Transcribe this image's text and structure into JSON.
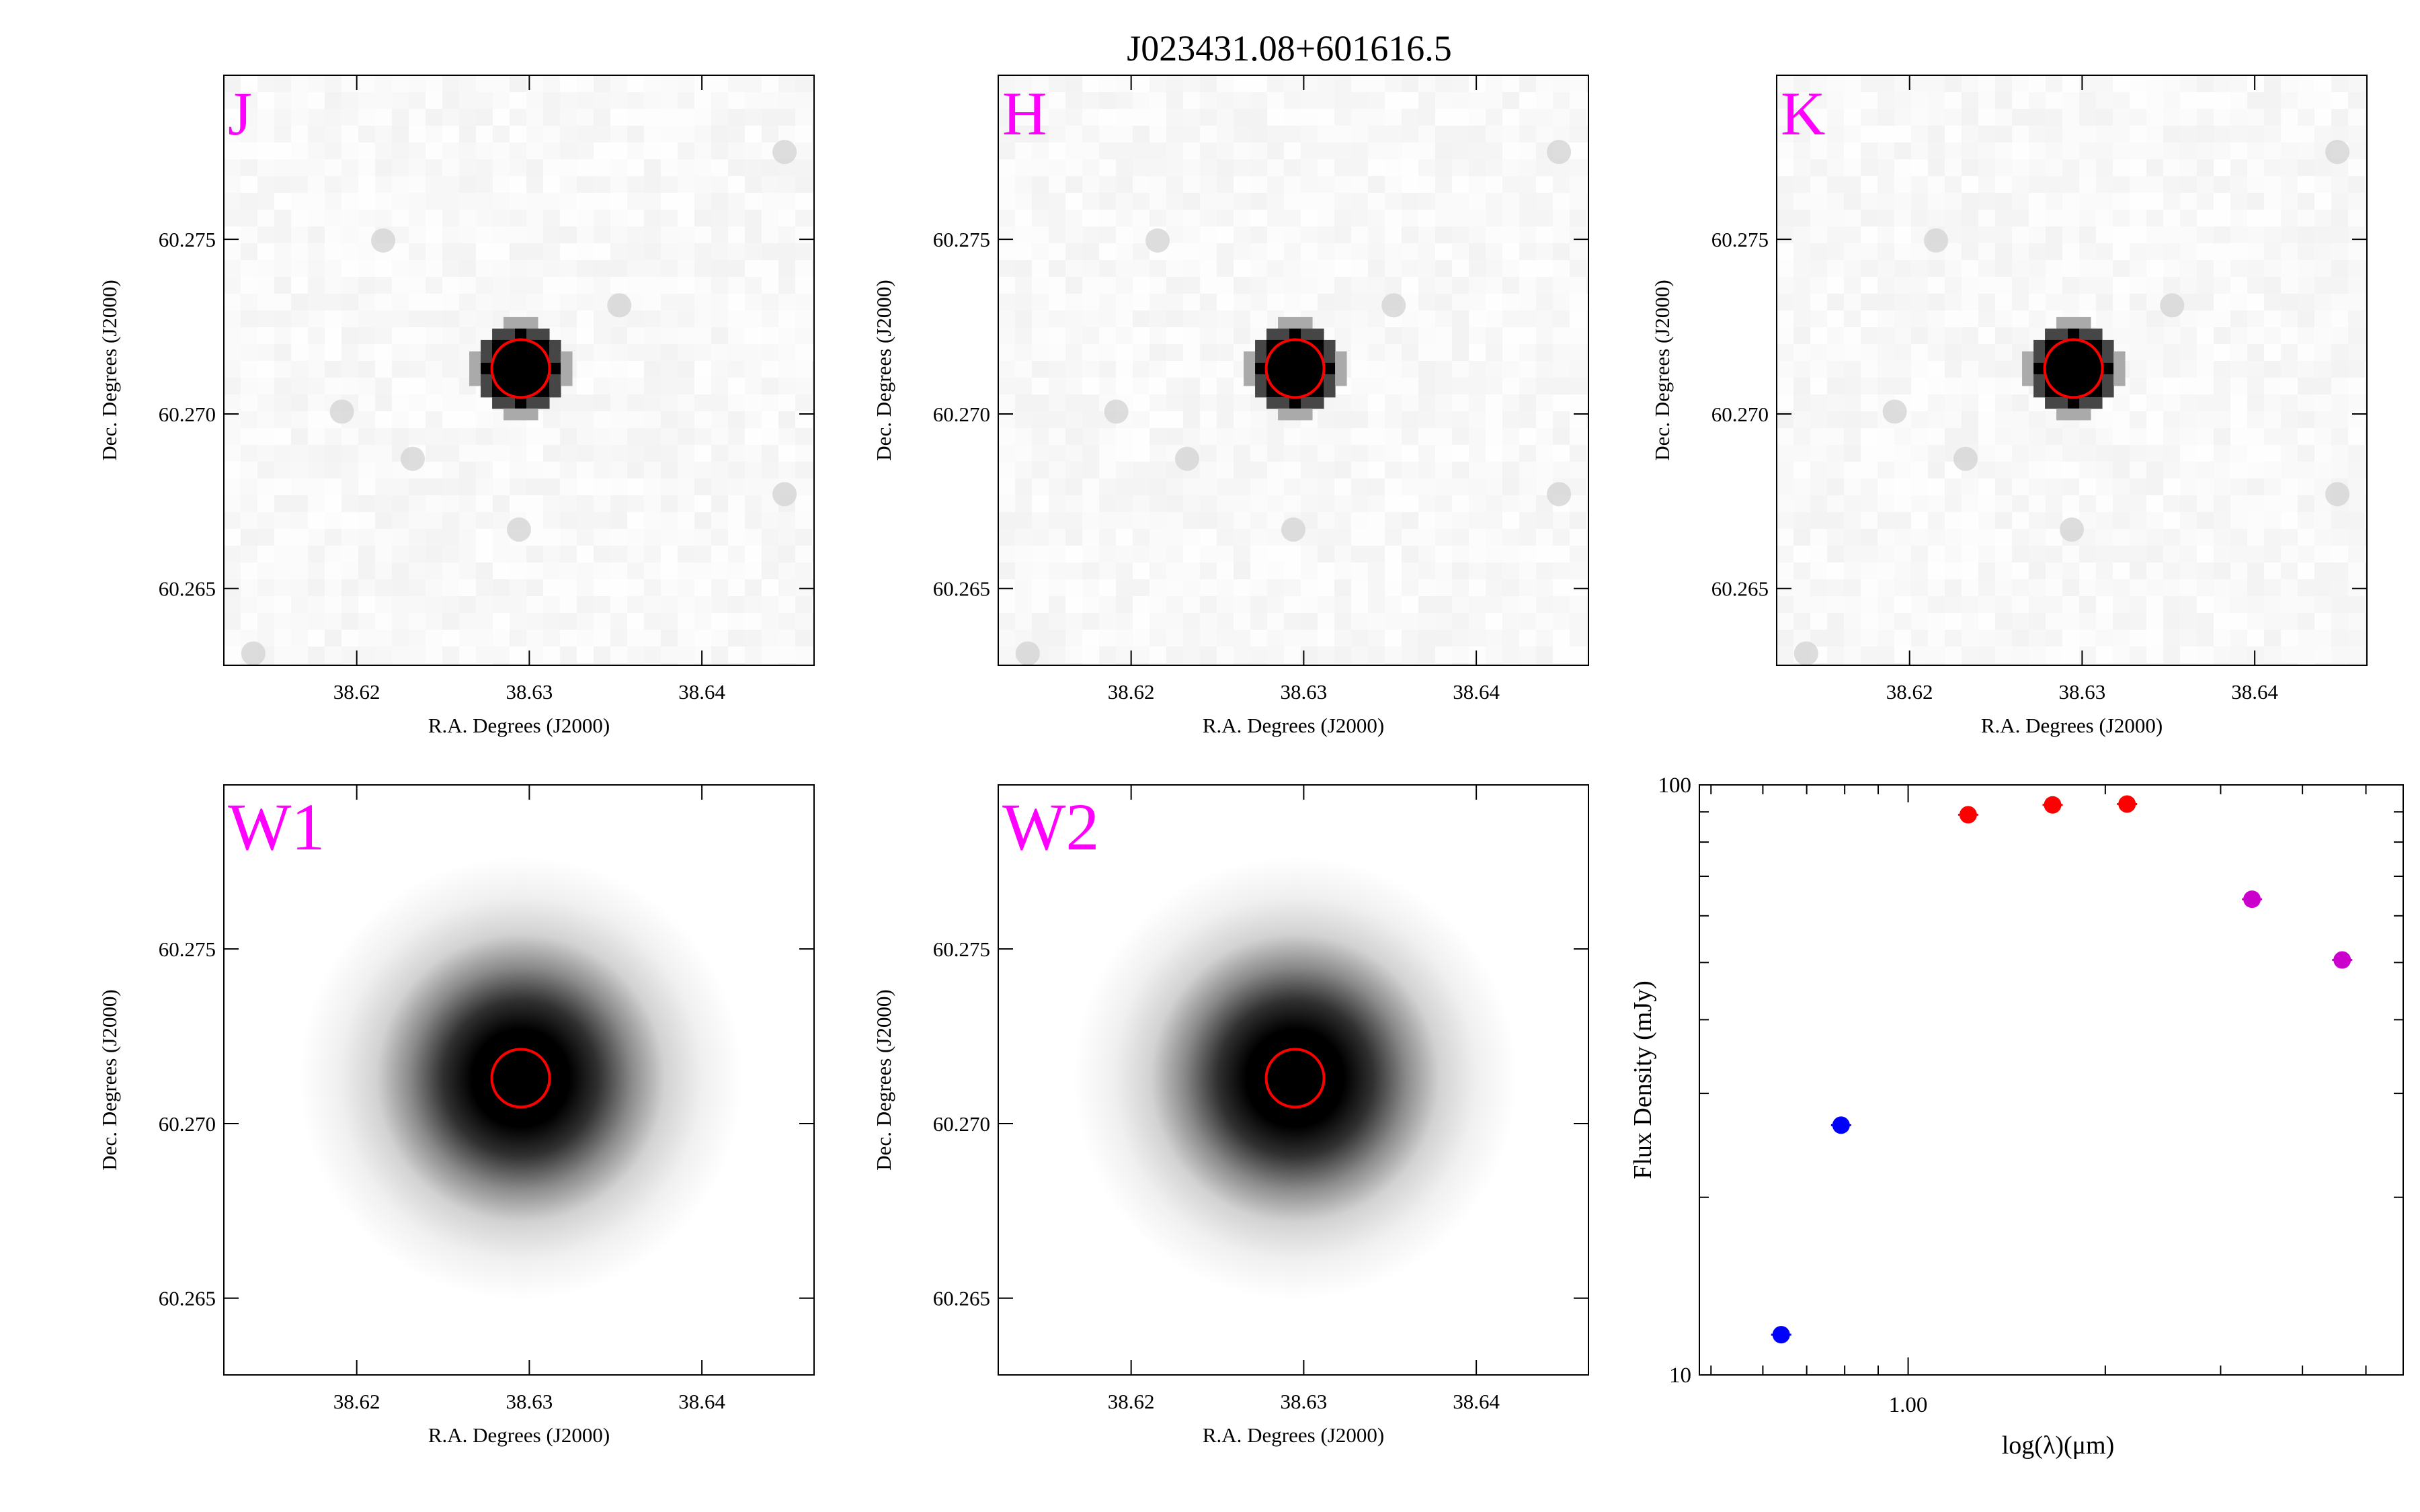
{
  "title": "J023431.08+601616.5",
  "colors": {
    "band_label": "#ff00ff",
    "aperture": "#ff0000",
    "sed_optical": "#0000ff",
    "sed_2mass": "#ff0000",
    "sed_wise": "#cc00cc"
  },
  "image_panels": [
    {
      "band": "J",
      "xlabel": "R.A. Degrees (J2000)",
      "ylabel": "Dec. Degrees (J2000)",
      "xticks": [
        "38.62",
        "38.63",
        "38.64"
      ],
      "yticks": [
        "60.275",
        "60.270",
        "60.265"
      ],
      "xlim": [
        38.6123,
        38.6465
      ],
      "ylim": [
        60.2628,
        60.2797
      ],
      "source": {
        "ra": 38.6295,
        "dec": 60.2713
      },
      "style": "2mass"
    },
    {
      "band": "H",
      "xlabel": "R.A. Degrees (J2000)",
      "ylabel": "Dec. Degrees (J2000)",
      "xticks": [
        "38.62",
        "38.63",
        "38.64"
      ],
      "yticks": [
        "60.275",
        "60.270",
        "60.265"
      ],
      "xlim": [
        38.6123,
        38.6465
      ],
      "ylim": [
        60.2628,
        60.2797
      ],
      "source": {
        "ra": 38.6295,
        "dec": 60.2713
      },
      "style": "2mass"
    },
    {
      "band": "K",
      "xlabel": "R.A. Degrees (J2000)",
      "ylabel": "Dec. Degrees (J2000)",
      "xticks": [
        "38.62",
        "38.63",
        "38.64"
      ],
      "yticks": [
        "60.275",
        "60.270",
        "60.265"
      ],
      "xlim": [
        38.6123,
        38.6465
      ],
      "ylim": [
        60.2628,
        60.2797
      ],
      "source": {
        "ra": 38.6295,
        "dec": 60.2713
      },
      "style": "2mass"
    },
    {
      "band": "W1",
      "xlabel": "R.A. Degrees (J2000)",
      "ylabel": "Dec. Degrees (J2000)",
      "xticks": [
        "38.62",
        "38.63",
        "38.64"
      ],
      "yticks": [
        "60.275",
        "60.270",
        "60.265"
      ],
      "xlim": [
        38.6123,
        38.6465
      ],
      "ylim": [
        60.2628,
        60.2797
      ],
      "source": {
        "ra": 38.6295,
        "dec": 60.2713
      },
      "style": "wise"
    },
    {
      "band": "W2",
      "xlabel": "R.A. Degrees (J2000)",
      "ylabel": "Dec. Degrees (J2000)",
      "xticks": [
        "38.62",
        "38.63",
        "38.64"
      ],
      "yticks": [
        "60.275",
        "60.270",
        "60.265"
      ],
      "xlim": [
        38.6123,
        38.6465
      ],
      "ylim": [
        60.2628,
        60.2797
      ],
      "source": {
        "ra": 38.6295,
        "dec": 60.2713
      },
      "style": "wise"
    }
  ],
  "chart_data": {
    "type": "scatter",
    "xlabel": "log(λ)(μm)",
    "ylabel": "Flux Density (mJy)",
    "x_scale": "log",
    "y_scale": "log",
    "xlim": [
      0.48,
      5.7
    ],
    "ylim": [
      10,
      100
    ],
    "x_tick_labels": [
      "1.00"
    ],
    "y_tick_labels": [
      "100",
      "10"
    ],
    "grid": false,
    "series": [
      {
        "color": "#0000ff",
        "points": [
          {
            "x": 0.64,
            "y": 11.7
          },
          {
            "x": 0.79,
            "y": 26.5
          }
        ]
      },
      {
        "color": "#ff0000",
        "points": [
          {
            "x": 1.235,
            "y": 89.0
          },
          {
            "x": 1.662,
            "y": 92.5
          },
          {
            "x": 2.159,
            "y": 92.8
          }
        ]
      },
      {
        "color": "#cc00cc",
        "points": [
          {
            "x": 3.35,
            "y": 64.0
          },
          {
            "x": 4.6,
            "y": 50.5
          }
        ]
      }
    ]
  }
}
